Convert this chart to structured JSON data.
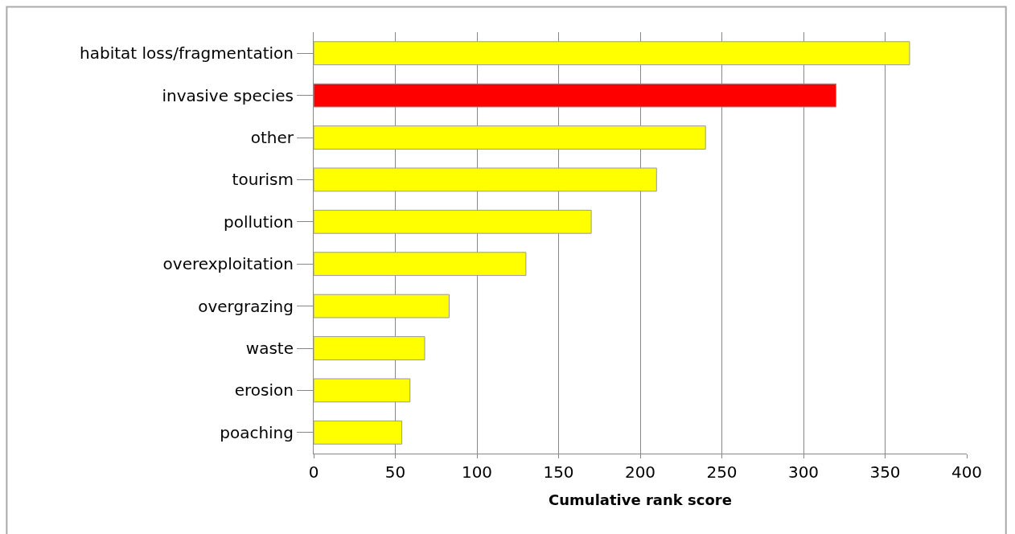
{
  "chart_data": {
    "type": "bar",
    "orientation": "horizontal",
    "xlabel": "Cumulative rank score",
    "categories": [
      "habitat loss/fragmentation",
      "invasive species",
      "other",
      "tourism",
      "pollution",
      "overexploitation",
      "overgrazing",
      "waste",
      "erosion",
      "poaching"
    ],
    "values": [
      365,
      320,
      240,
      210,
      170,
      130,
      83,
      68,
      59,
      54
    ],
    "colors": [
      "#ffff00",
      "#ff0000",
      "#ffff00",
      "#ffff00",
      "#ffff00",
      "#ffff00",
      "#ffff00",
      "#ffff00",
      "#ffff00",
      "#ffff00"
    ],
    "xlim": [
      0,
      400
    ],
    "xticks": [
      0,
      50,
      100,
      150,
      200,
      250,
      300,
      350,
      400
    ],
    "grid": "x"
  }
}
